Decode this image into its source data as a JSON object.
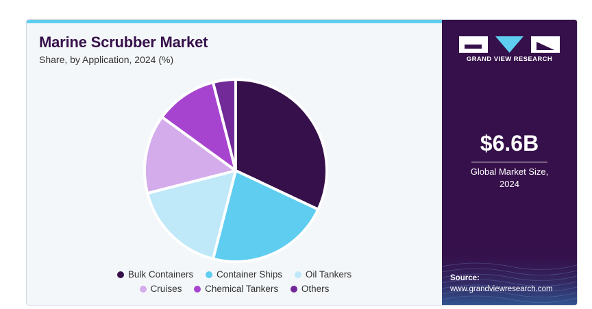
{
  "header": {
    "title": "Marine Scrubber Market",
    "subtitle": "Share, by Application, 2024 (%)"
  },
  "sidebar": {
    "brand": "GRAND VIEW RESEARCH",
    "market_size": "$6.6B",
    "market_caption_line1": "Global Market Size,",
    "market_caption_line2": "2024",
    "source_label": "Source:",
    "source_url": "www.grandviewresearch.com"
  },
  "colors": {
    "accent_bar": "#5fcdf0",
    "panel_bg": "#35104a",
    "title": "#36104a"
  },
  "chart_data": {
    "type": "pie",
    "title": "Marine Scrubber Market",
    "subtitle": "Share, by Application, 2024 (%)",
    "start_angle_deg": 0,
    "direction": "clockwise",
    "legend_position": "bottom",
    "slices": [
      {
        "label": "Bulk Containers",
        "value": 32,
        "color": "#36104a"
      },
      {
        "label": "Container Ships",
        "value": 22,
        "color": "#5fcdf0"
      },
      {
        "label": "Oil Tankers",
        "value": 17,
        "color": "#bfe8f8"
      },
      {
        "label": "Cruises",
        "value": 14,
        "color": "#d4aceb"
      },
      {
        "label": "Chemical Tankers",
        "value": 11,
        "color": "#a744cf"
      },
      {
        "label": "Others",
        "value": 4,
        "color": "#722a98"
      }
    ]
  }
}
